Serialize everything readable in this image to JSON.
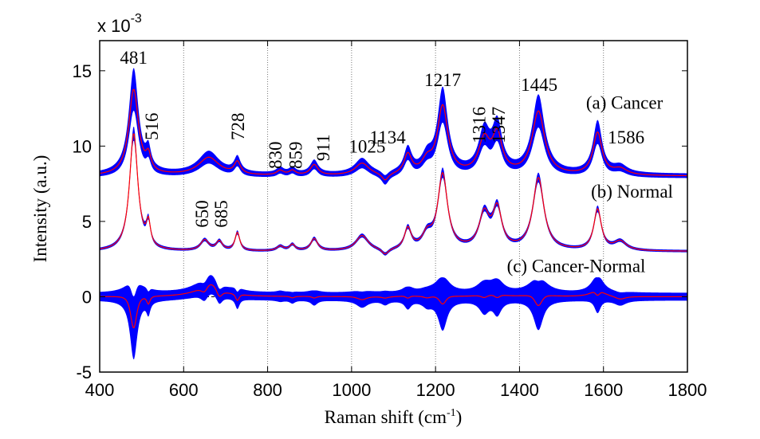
{
  "chart_data": {
    "type": "line",
    "title": "",
    "xlabel": "Raman shift (cm",
    "xlabel_sup": "-1",
    "xlabel_close": ")",
    "ylabel": "Intensity (a.u.)",
    "y_multiplier": "x 10",
    "y_multiplier_exp": "-3",
    "xlim": [
      400,
      1800
    ],
    "ylim": [
      -5,
      17
    ],
    "xticks": [
      400,
      600,
      800,
      1000,
      1200,
      1400,
      1600,
      1800
    ],
    "xtick_labels": [
      "400",
      "600",
      "800",
      "1000",
      "1200",
      "1400",
      "1600",
      "1800"
    ],
    "yticks": [
      -5,
      0,
      5,
      10,
      15
    ],
    "ytick_labels": [
      "-5",
      "0",
      "5",
      "10",
      "15"
    ],
    "vgrid_dotted": [
      600,
      800,
      1000,
      1200,
      1400,
      1600
    ],
    "zero_line": "dashed",
    "colors": {
      "band": "#0000ff",
      "mean": "#ff0000"
    },
    "series": [
      {
        "name": "(a) Cancer",
        "baseline": 8.0,
        "peaks": [
          [
            481,
            5.7,
            28
          ],
          [
            516,
            1.0,
            14
          ],
          [
            660,
            1.2,
            60
          ],
          [
            728,
            0.8,
            18
          ],
          [
            830,
            0.3,
            20
          ],
          [
            859,
            0.3,
            18
          ],
          [
            911,
            0.7,
            22
          ],
          [
            1025,
            0.8,
            40
          ],
          [
            1080,
            -0.5,
            20
          ],
          [
            1134,
            1.3,
            22
          ],
          [
            1180,
            0.8,
            30
          ],
          [
            1217,
            4.5,
            30
          ],
          [
            1316,
            2.2,
            32
          ],
          [
            1347,
            2.5,
            28
          ],
          [
            1445,
            4.2,
            36
          ],
          [
            1586,
            2.8,
            26
          ],
          [
            1640,
            0.4,
            40
          ]
        ],
        "band_sd": [
          0.15,
          0.22
        ]
      },
      {
        "name": "(b) Normal",
        "baseline": 3.0,
        "peaks": [
          [
            481,
            7.8,
            24
          ],
          [
            516,
            1.5,
            12
          ],
          [
            650,
            0.7,
            24
          ],
          [
            685,
            0.6,
            18
          ],
          [
            728,
            1.2,
            14
          ],
          [
            830,
            0.3,
            20
          ],
          [
            859,
            0.4,
            16
          ],
          [
            911,
            0.8,
            20
          ],
          [
            1025,
            1.0,
            36
          ],
          [
            1080,
            -0.4,
            20
          ],
          [
            1134,
            1.4,
            20
          ],
          [
            1180,
            0.9,
            28
          ],
          [
            1217,
            5.0,
            28
          ],
          [
            1316,
            2.3,
            30
          ],
          [
            1347,
            2.6,
            26
          ],
          [
            1445,
            4.8,
            32
          ],
          [
            1586,
            2.7,
            22
          ],
          [
            1640,
            0.6,
            36
          ]
        ],
        "band_sd": [
          0.08,
          0.05
        ]
      },
      {
        "name": "(c) Cancer-Normal",
        "derived": "a-b",
        "band_sd": [
          0.25,
          0.32
        ]
      }
    ],
    "annotations": [
      {
        "text": "481",
        "x": 481,
        "y": 15.9,
        "rotate": false
      },
      {
        "text": "516",
        "x": 523,
        "y": 11.3,
        "rotate": true
      },
      {
        "text": "728",
        "x": 729,
        "y": 11.3,
        "rotate": true
      },
      {
        "text": "830",
        "x": 818,
        "y": 9.4,
        "rotate": true
      },
      {
        "text": "859",
        "x": 866,
        "y": 9.4,
        "rotate": true
      },
      {
        "text": "911",
        "x": 932,
        "y": 9.9,
        "rotate": true
      },
      {
        "text": "1025",
        "x": 1037,
        "y": 10.0,
        "rotate": false
      },
      {
        "text": "1134",
        "x": 1086,
        "y": 10.6,
        "rotate": false
      },
      {
        "text": "1217",
        "x": 1217,
        "y": 14.4,
        "rotate": false
      },
      {
        "text": "1316",
        "x": 1303,
        "y": 11.4,
        "rotate": true
      },
      {
        "text": "1347",
        "x": 1350,
        "y": 11.4,
        "rotate": true
      },
      {
        "text": "1445",
        "x": 1447,
        "y": 14.1,
        "rotate": false
      },
      {
        "text": "1586",
        "x": 1654,
        "y": 10.6,
        "rotate": false
      },
      {
        "text": "650",
        "x": 643,
        "y": 5.5,
        "rotate": true
      },
      {
        "text": "685",
        "x": 689,
        "y": 5.5,
        "rotate": true
      }
    ],
    "series_labels": [
      {
        "text": "(a) Cancer",
        "x": 1650,
        "y": 12.9
      },
      {
        "text": "(b) Normal",
        "x": 1668,
        "y": 7.0
      },
      {
        "text": "(c) Cancer-Normal",
        "x": 1535,
        "y": 2.05
      }
    ]
  }
}
